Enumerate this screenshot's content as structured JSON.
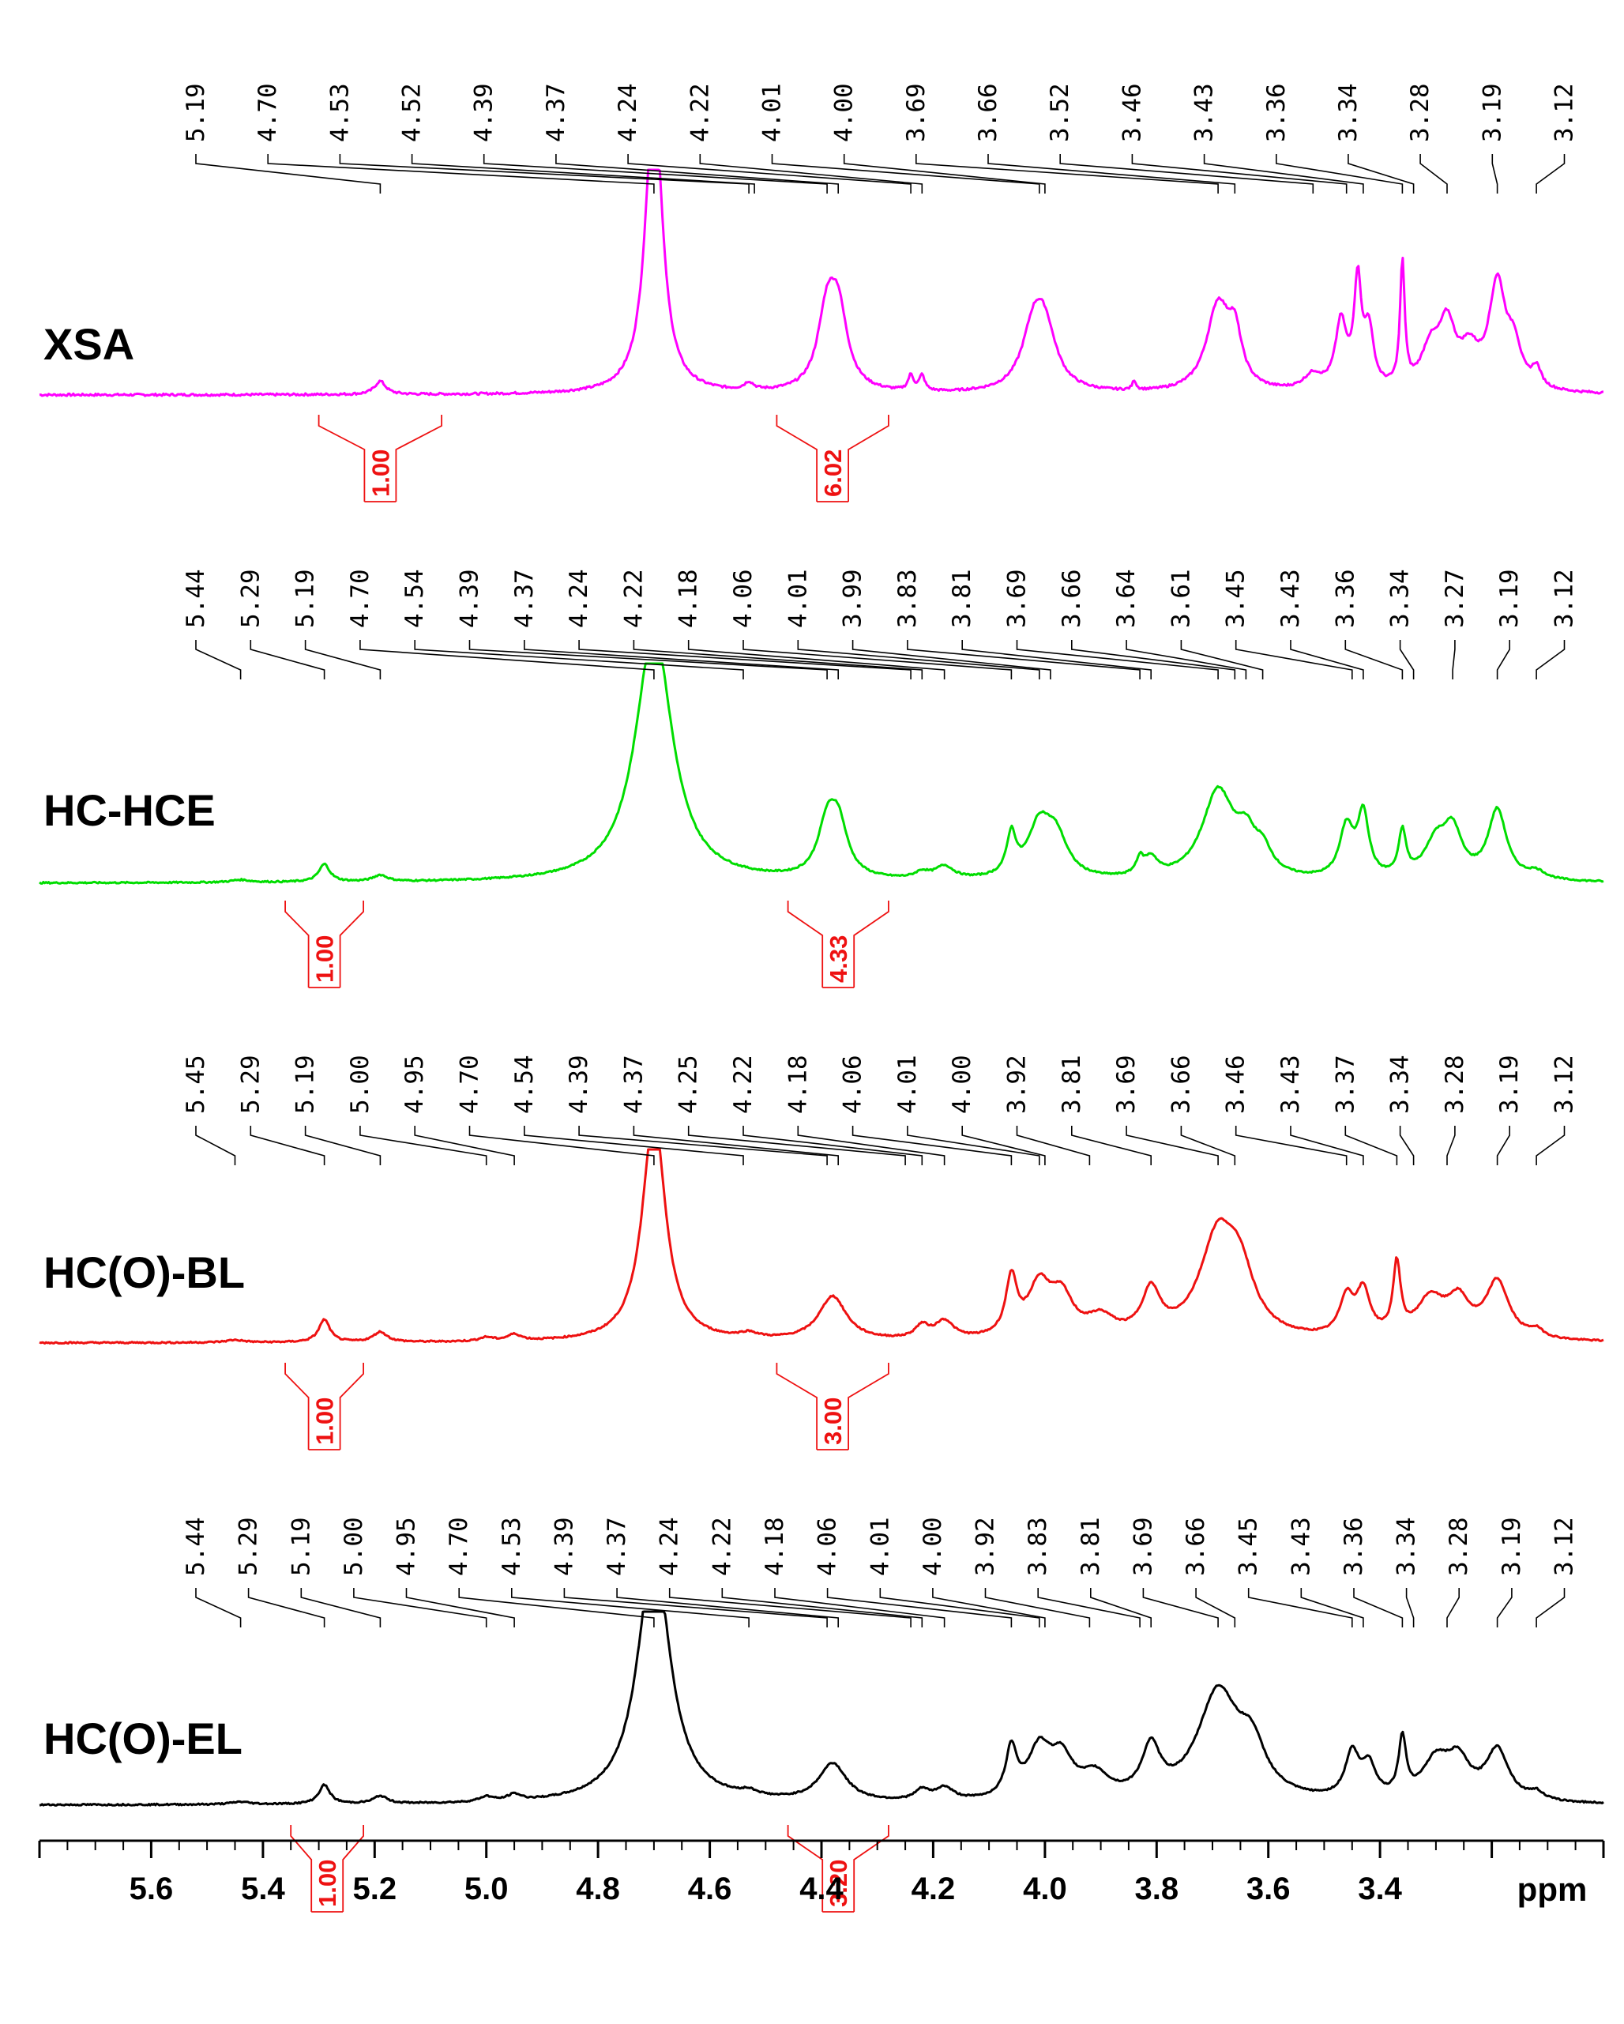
{
  "chart_data": {
    "type": "line",
    "title": "",
    "xlabel": "ppm",
    "ylabel": "",
    "x_reversed": true,
    "xlim": [
      5.8,
      3.0
    ],
    "grid": false,
    "x_ticks": [
      "5.6",
      "5.4",
      "5.2",
      "5.0",
      "4.8",
      "4.6",
      "4.4",
      "4.2",
      "4.0",
      "3.8",
      "3.6",
      "3.4"
    ],
    "x_tick_values": [
      5.6,
      5.4,
      5.2,
      5.0,
      4.8,
      4.6,
      4.4,
      4.2,
      4.0,
      3.8,
      3.6,
      3.4
    ],
    "series": [
      {
        "name": "XSA",
        "color": "#ff00ff",
        "peak_labels": [
          "5.19",
          "4.70",
          "4.53",
          "4.52",
          "4.39",
          "4.37",
          "4.24",
          "4.22",
          "4.01",
          "4.00",
          "3.69",
          "3.66",
          "3.52",
          "3.46",
          "3.43",
          "3.36",
          "3.34",
          "3.28",
          "3.19",
          "3.12"
        ],
        "integrals": [
          {
            "label": "1.00",
            "from": 5.3,
            "to": 5.08
          },
          {
            "label": "6.02",
            "from": 4.48,
            "to": 4.28
          }
        ],
        "peaks": [
          {
            "ppm": 5.19,
            "h": 0.07,
            "w": 0.012
          },
          {
            "ppm": 4.7,
            "h": 1.6,
            "w": 0.018
          },
          {
            "ppm": 4.53,
            "h": 0.04,
            "w": 0.01
          },
          {
            "ppm": 4.39,
            "h": 0.38,
            "w": 0.02
          },
          {
            "ppm": 4.37,
            "h": 0.38,
            "w": 0.02
          },
          {
            "ppm": 4.24,
            "h": 0.08,
            "w": 0.006
          },
          {
            "ppm": 4.22,
            "h": 0.08,
            "w": 0.006
          },
          {
            "ppm": 4.02,
            "h": 0.3,
            "w": 0.025
          },
          {
            "ppm": 4.0,
            "h": 0.28,
            "w": 0.025
          },
          {
            "ppm": 3.84,
            "h": 0.05,
            "w": 0.004
          },
          {
            "ppm": 3.69,
            "h": 0.45,
            "w": 0.025
          },
          {
            "ppm": 3.66,
            "h": 0.25,
            "w": 0.015
          },
          {
            "ppm": 3.52,
            "h": 0.08,
            "w": 0.02
          },
          {
            "ppm": 3.47,
            "h": 0.35,
            "w": 0.012
          },
          {
            "ppm": 3.44,
            "h": 0.55,
            "w": 0.008
          },
          {
            "ppm": 3.42,
            "h": 0.3,
            "w": 0.01
          },
          {
            "ppm": 3.36,
            "h": 0.65,
            "w": 0.005
          },
          {
            "ppm": 3.31,
            "h": 0.2,
            "w": 0.02
          },
          {
            "ppm": 3.28,
            "h": 0.32,
            "w": 0.018
          },
          {
            "ppm": 3.24,
            "h": 0.18,
            "w": 0.02
          },
          {
            "ppm": 3.19,
            "h": 0.55,
            "w": 0.018
          },
          {
            "ppm": 3.16,
            "h": 0.2,
            "w": 0.015
          },
          {
            "ppm": 3.12,
            "h": 0.1,
            "w": 0.01
          }
        ]
      },
      {
        "name": "HC-HCE",
        "color": "#00dd00",
        "peak_labels": [
          "5.44",
          "5.29",
          "5.19",
          "4.70",
          "4.54",
          "4.39",
          "4.37",
          "4.24",
          "4.22",
          "4.18",
          "4.06",
          "4.01",
          "3.99",
          "3.83",
          "3.81",
          "3.69",
          "3.66",
          "3.64",
          "3.61",
          "3.45",
          "3.43",
          "3.36",
          "3.34",
          "3.27",
          "3.19",
          "3.12"
        ],
        "integrals": [
          {
            "label": "1.00",
            "from": 5.36,
            "to": 5.22
          },
          {
            "label": "4.33",
            "from": 4.46,
            "to": 4.28
          }
        ],
        "peaks": [
          {
            "ppm": 5.44,
            "h": 0.02,
            "w": 0.02
          },
          {
            "ppm": 5.29,
            "h": 0.14,
            "w": 0.012
          },
          {
            "ppm": 5.19,
            "h": 0.05,
            "w": 0.015
          },
          {
            "ppm": 4.7,
            "h": 2.0,
            "w": 0.04
          },
          {
            "ppm": 4.39,
            "h": 0.38,
            "w": 0.02
          },
          {
            "ppm": 4.37,
            "h": 0.4,
            "w": 0.02
          },
          {
            "ppm": 4.22,
            "h": 0.05,
            "w": 0.015
          },
          {
            "ppm": 4.18,
            "h": 0.1,
            "w": 0.02
          },
          {
            "ppm": 4.06,
            "h": 0.32,
            "w": 0.01
          },
          {
            "ppm": 4.01,
            "h": 0.4,
            "w": 0.025
          },
          {
            "ppm": 3.98,
            "h": 0.3,
            "w": 0.025
          },
          {
            "ppm": 3.83,
            "h": 0.12,
            "w": 0.008
          },
          {
            "ppm": 3.81,
            "h": 0.14,
            "w": 0.015
          },
          {
            "ppm": 3.69,
            "h": 0.7,
            "w": 0.035
          },
          {
            "ppm": 3.64,
            "h": 0.25,
            "w": 0.02
          },
          {
            "ppm": 3.61,
            "h": 0.18,
            "w": 0.02
          },
          {
            "ppm": 3.46,
            "h": 0.4,
            "w": 0.015
          },
          {
            "ppm": 3.43,
            "h": 0.5,
            "w": 0.012
          },
          {
            "ppm": 3.36,
            "h": 0.35,
            "w": 0.008
          },
          {
            "ppm": 3.3,
            "h": 0.28,
            "w": 0.025
          },
          {
            "ppm": 3.27,
            "h": 0.35,
            "w": 0.02
          },
          {
            "ppm": 3.19,
            "h": 0.55,
            "w": 0.02
          },
          {
            "ppm": 3.12,
            "h": 0.06,
            "w": 0.02
          }
        ]
      },
      {
        "name": "HC(O)-BL",
        "color": "#ee1111",
        "peak_labels": [
          "5.45",
          "5.29",
          "5.19",
          "5.00",
          "4.95",
          "4.70",
          "4.54",
          "4.39",
          "4.37",
          "4.25",
          "4.22",
          "4.18",
          "4.06",
          "4.01",
          "4.00",
          "3.92",
          "3.81",
          "3.69",
          "3.66",
          "3.46",
          "3.43",
          "3.37",
          "3.34",
          "3.28",
          "3.19",
          "3.12"
        ],
        "integrals": [
          {
            "label": "1.00",
            "from": 5.36,
            "to": 5.22
          },
          {
            "label": "3.00",
            "from": 4.48,
            "to": 4.28
          }
        ],
        "peaks": [
          {
            "ppm": 5.45,
            "h": 0.02,
            "w": 0.02
          },
          {
            "ppm": 5.29,
            "h": 0.18,
            "w": 0.012
          },
          {
            "ppm": 5.19,
            "h": 0.08,
            "w": 0.015
          },
          {
            "ppm": 5.0,
            "h": 0.03,
            "w": 0.015
          },
          {
            "ppm": 4.95,
            "h": 0.05,
            "w": 0.015
          },
          {
            "ppm": 4.7,
            "h": 1.8,
            "w": 0.025
          },
          {
            "ppm": 4.53,
            "h": 0.04,
            "w": 0.02
          },
          {
            "ppm": 4.38,
            "h": 0.35,
            "w": 0.03
          },
          {
            "ppm": 4.22,
            "h": 0.1,
            "w": 0.015
          },
          {
            "ppm": 4.18,
            "h": 0.14,
            "w": 0.02
          },
          {
            "ppm": 4.06,
            "h": 0.45,
            "w": 0.012
          },
          {
            "ppm": 4.01,
            "h": 0.4,
            "w": 0.025
          },
          {
            "ppm": 3.97,
            "h": 0.3,
            "w": 0.025
          },
          {
            "ppm": 3.9,
            "h": 0.15,
            "w": 0.03
          },
          {
            "ppm": 3.81,
            "h": 0.35,
            "w": 0.02
          },
          {
            "ppm": 3.69,
            "h": 0.8,
            "w": 0.04
          },
          {
            "ppm": 3.65,
            "h": 0.4,
            "w": 0.03
          },
          {
            "ppm": 3.46,
            "h": 0.3,
            "w": 0.015
          },
          {
            "ppm": 3.43,
            "h": 0.35,
            "w": 0.015
          },
          {
            "ppm": 3.37,
            "h": 0.55,
            "w": 0.008
          },
          {
            "ppm": 3.31,
            "h": 0.3,
            "w": 0.03
          },
          {
            "ppm": 3.26,
            "h": 0.28,
            "w": 0.025
          },
          {
            "ppm": 3.19,
            "h": 0.45,
            "w": 0.025
          },
          {
            "ppm": 3.12,
            "h": 0.06,
            "w": 0.015
          }
        ]
      },
      {
        "name": "HC(O)-EL",
        "color": "#000000",
        "peak_labels": [
          "5.44",
          "5.29",
          "5.19",
          "5.00",
          "4.95",
          "4.70",
          "4.53",
          "4.39",
          "4.37",
          "4.24",
          "4.22",
          "4.18",
          "4.06",
          "4.01",
          "4.00",
          "3.92",
          "3.83",
          "3.81",
          "3.69",
          "3.66",
          "3.45",
          "3.43",
          "3.36",
          "3.34",
          "3.28",
          "3.19",
          "3.12"
        ],
        "integrals": [
          {
            "label": "1.00",
            "from": 5.35,
            "to": 5.22
          },
          {
            "label": "3.20",
            "from": 4.46,
            "to": 4.28
          }
        ],
        "peaks": [
          {
            "ppm": 5.44,
            "h": 0.02,
            "w": 0.02
          },
          {
            "ppm": 5.29,
            "h": 0.15,
            "w": 0.012
          },
          {
            "ppm": 5.19,
            "h": 0.06,
            "w": 0.015
          },
          {
            "ppm": 5.0,
            "h": 0.04,
            "w": 0.015
          },
          {
            "ppm": 4.95,
            "h": 0.05,
            "w": 0.015
          },
          {
            "ppm": 4.7,
            "h": 2.0,
            "w": 0.035
          },
          {
            "ppm": 4.53,
            "h": 0.04,
            "w": 0.02
          },
          {
            "ppm": 4.38,
            "h": 0.3,
            "w": 0.03
          },
          {
            "ppm": 4.22,
            "h": 0.08,
            "w": 0.015
          },
          {
            "ppm": 4.18,
            "h": 0.1,
            "w": 0.02
          },
          {
            "ppm": 4.06,
            "h": 0.38,
            "w": 0.012
          },
          {
            "ppm": 4.01,
            "h": 0.38,
            "w": 0.025
          },
          {
            "ppm": 3.97,
            "h": 0.3,
            "w": 0.025
          },
          {
            "ppm": 3.91,
            "h": 0.18,
            "w": 0.03
          },
          {
            "ppm": 3.81,
            "h": 0.38,
            "w": 0.02
          },
          {
            "ppm": 3.69,
            "h": 0.85,
            "w": 0.045
          },
          {
            "ppm": 3.63,
            "h": 0.35,
            "w": 0.03
          },
          {
            "ppm": 3.45,
            "h": 0.35,
            "w": 0.015
          },
          {
            "ppm": 3.42,
            "h": 0.25,
            "w": 0.015
          },
          {
            "ppm": 3.36,
            "h": 0.45,
            "w": 0.008
          },
          {
            "ppm": 3.3,
            "h": 0.3,
            "w": 0.03
          },
          {
            "ppm": 3.26,
            "h": 0.28,
            "w": 0.025
          },
          {
            "ppm": 3.19,
            "h": 0.4,
            "w": 0.025
          },
          {
            "ppm": 3.12,
            "h": 0.06,
            "w": 0.015
          }
        ]
      }
    ]
  }
}
